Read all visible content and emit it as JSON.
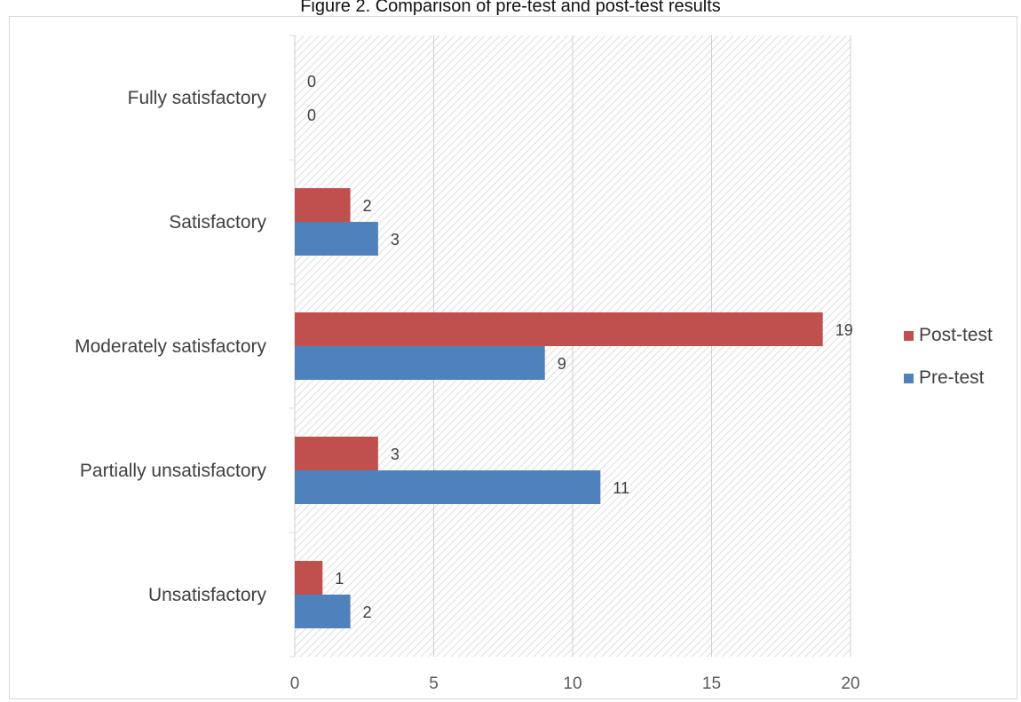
{
  "chart_data": {
    "type": "bar",
    "orientation": "horizontal",
    "title": "Figure 2. Comparison of pre-test and post-test results",
    "categories": [
      "Fully satisfactory",
      "Satisfactory",
      "Moderately satisfactory",
      "Partially unsatisfactory",
      "Unsatisfactory"
    ],
    "series": [
      {
        "name": "Post-test",
        "color": "#c0504d",
        "values": [
          0,
          2,
          19,
          3,
          1
        ]
      },
      {
        "name": "Pre-test",
        "color": "#4f81bd",
        "values": [
          0,
          3,
          9,
          11,
          2
        ]
      }
    ],
    "xlim": [
      0,
      20
    ],
    "xticks": [
      0,
      5,
      10,
      15,
      20
    ],
    "xlabel": "",
    "ylabel": "",
    "grid": true,
    "legend": "right",
    "data_labels": true
  }
}
